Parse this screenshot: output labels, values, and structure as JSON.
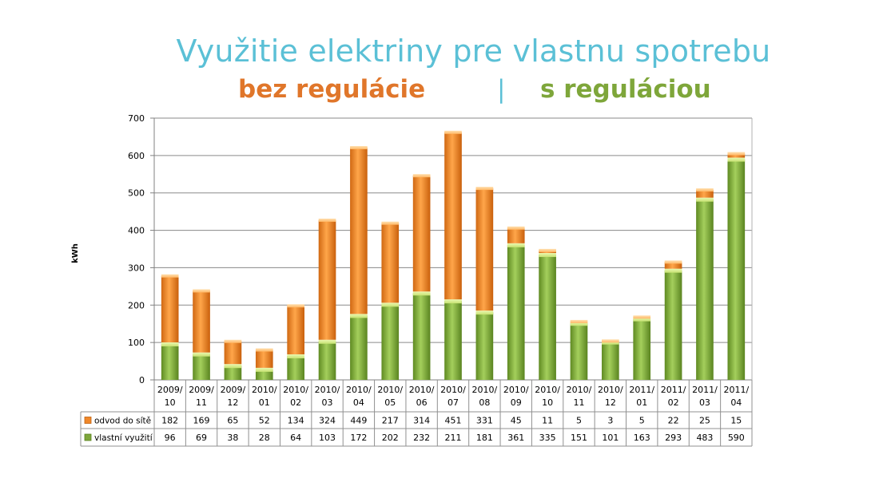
{
  "page": {
    "title": "Využitie elektriny pre vlastnu spotrebu",
    "subtitle_left": "bez regulácie",
    "separator": "|",
    "subtitle_right": "s reguláciou",
    "colors": {
      "title": "#5bc0d6",
      "subtitle_left": "#e0762a",
      "subtitle_right": "#7ea63a"
    }
  },
  "chart_data": {
    "type": "bar",
    "stacked": true,
    "ylabel": "kWh",
    "ylim": [
      0,
      700
    ],
    "yticks": [
      0,
      100,
      200,
      300,
      400,
      500,
      600,
      700
    ],
    "grid": true,
    "categories": [
      [
        "2009/",
        "10"
      ],
      [
        "2009/",
        "11"
      ],
      [
        "2009/",
        "12"
      ],
      [
        "2010/",
        "01"
      ],
      [
        "2010/",
        "02"
      ],
      [
        "2010/",
        "03"
      ],
      [
        "2010/",
        "04"
      ],
      [
        "2010/",
        "05"
      ],
      [
        "2010/",
        "06"
      ],
      [
        "2010/",
        "07"
      ],
      [
        "2010/",
        "08"
      ],
      [
        "2010/",
        "09"
      ],
      [
        "2010/",
        "10"
      ],
      [
        "2010/",
        "11"
      ],
      [
        "2010/",
        "12"
      ],
      [
        "2011/",
        "01"
      ],
      [
        "2011/",
        "02"
      ],
      [
        "2011/",
        "03"
      ],
      [
        "2011/",
        "04"
      ]
    ],
    "series": [
      {
        "name": "vlastní využití",
        "color": "#7ea63a",
        "values": [
          96,
          69,
          38,
          28,
          64,
          103,
          172,
          202,
          232,
          211,
          181,
          361,
          335,
          151,
          101,
          163,
          293,
          483,
          590
        ]
      },
      {
        "name": "odvod do sítě",
        "color": "#f0882a",
        "values": [
          182,
          169,
          65,
          52,
          134,
          324,
          449,
          217,
          314,
          451,
          331,
          45,
          11,
          5,
          3,
          5,
          22,
          25,
          15
        ]
      }
    ],
    "data_table": true,
    "table_row_order": [
      "odvod do sítě",
      "vlastní využití"
    ]
  }
}
